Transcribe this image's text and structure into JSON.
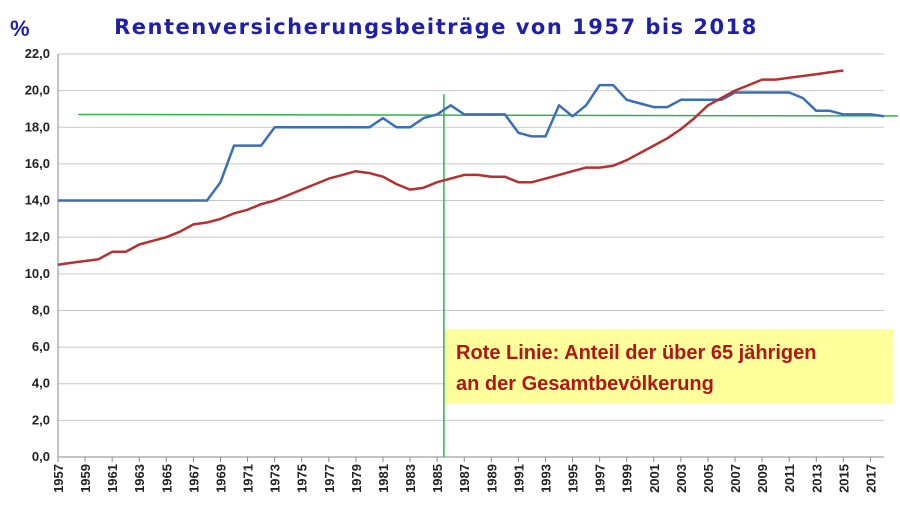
{
  "chart_data": {
    "type": "line",
    "title": "Rentenversicherungsbeiträge von 1957 bis 2018",
    "ylabel": "%",
    "ylim": [
      0,
      22
    ],
    "yticks": [
      "0,0",
      "2,0",
      "4,0",
      "6,0",
      "8,0",
      "10,0",
      "12,0",
      "14,0",
      "16,0",
      "18,0",
      "20,0",
      "22,0"
    ],
    "xrange": [
      1957,
      2018
    ],
    "xticks": [
      "1957",
      "1959",
      "1961",
      "1963",
      "1965",
      "1967",
      "1969",
      "1971",
      "1973",
      "1975",
      "1977",
      "1979",
      "1981",
      "1983",
      "1985",
      "1987",
      "1989",
      "1991",
      "1993",
      "1995",
      "1997",
      "1999",
      "2001",
      "2003",
      "2005",
      "2007",
      "2009",
      "2011",
      "2013",
      "2015",
      "2017"
    ],
    "grid": true,
    "series": [
      {
        "color": "#3a6fb5",
        "x": [
          1957,
          1958,
          1959,
          1960,
          1961,
          1962,
          1963,
          1964,
          1965,
          1966,
          1967,
          1968,
          1969,
          1970,
          1971,
          1972,
          1973,
          1974,
          1975,
          1976,
          1977,
          1978,
          1979,
          1980,
          1981,
          1982,
          1983,
          1984,
          1985,
          1986,
          1987,
          1988,
          1989,
          1990,
          1991,
          1992,
          1993,
          1994,
          1995,
          1996,
          1997,
          1998,
          1999,
          2000,
          2001,
          2002,
          2003,
          2004,
          2005,
          2006,
          2007,
          2008,
          2009,
          2010,
          2011,
          2012,
          2013,
          2014,
          2015,
          2016,
          2017,
          2018
        ],
        "values": [
          14.0,
          14.0,
          14.0,
          14.0,
          14.0,
          14.0,
          14.0,
          14.0,
          14.0,
          14.0,
          14.0,
          14.0,
          15.0,
          17.0,
          17.0,
          17.0,
          18.0,
          18.0,
          18.0,
          18.0,
          18.0,
          18.0,
          18.0,
          18.0,
          18.5,
          18.0,
          18.0,
          18.5,
          18.7,
          19.2,
          18.7,
          18.7,
          18.7,
          18.7,
          17.7,
          17.5,
          17.5,
          19.2,
          18.6,
          19.2,
          20.3,
          20.3,
          19.5,
          19.3,
          19.1,
          19.1,
          19.5,
          19.5,
          19.5,
          19.5,
          19.9,
          19.9,
          19.9,
          19.9,
          19.9,
          19.6,
          18.9,
          18.9,
          18.7,
          18.7,
          18.7,
          18.6
        ]
      },
      {
        "color": "#b53030",
        "x": [
          1957,
          1958,
          1959,
          1960,
          1961,
          1962,
          1963,
          1964,
          1965,
          1966,
          1967,
          1968,
          1969,
          1970,
          1971,
          1972,
          1973,
          1974,
          1975,
          1976,
          1977,
          1978,
          1979,
          1980,
          1981,
          1982,
          1983,
          1984,
          1985,
          1986,
          1987,
          1988,
          1989,
          1990,
          1991,
          1992,
          1993,
          1994,
          1995,
          1996,
          1997,
          1998,
          1999,
          2000,
          2001,
          2002,
          2003,
          2004,
          2005,
          2006,
          2007,
          2008,
          2009,
          2010,
          2011,
          2012,
          2013,
          2014,
          2015
        ],
        "values": [
          10.5,
          10.6,
          10.7,
          10.8,
          11.2,
          11.2,
          11.6,
          11.8,
          12.0,
          12.3,
          12.7,
          12.8,
          13.0,
          13.3,
          13.5,
          13.8,
          14.0,
          14.3,
          14.6,
          14.9,
          15.2,
          15.4,
          15.6,
          15.5,
          15.3,
          14.9,
          14.6,
          14.7,
          15.0,
          15.2,
          15.4,
          15.4,
          15.3,
          15.3,
          15.0,
          15.0,
          15.2,
          15.4,
          15.6,
          15.8,
          15.8,
          15.9,
          16.2,
          16.6,
          17.0,
          17.4,
          17.9,
          18.5,
          19.2,
          19.6,
          20.0,
          20.3,
          20.6,
          20.6,
          20.7,
          20.8,
          20.9,
          21.0,
          21.1
        ]
      }
    ],
    "reference_lines": [
      {
        "orientation": "horizontal",
        "value": 18.7,
        "color": "#2bb34a"
      },
      {
        "orientation": "vertical",
        "value": 1985.5,
        "color": "#2bb34a"
      }
    ],
    "annotation": {
      "lines": [
        "Rote Linie: Anteil der über 65 jährigen",
        "an der Gesamtbevölkerung"
      ],
      "background": "#ffff9c",
      "text_color": "#b01616"
    }
  }
}
